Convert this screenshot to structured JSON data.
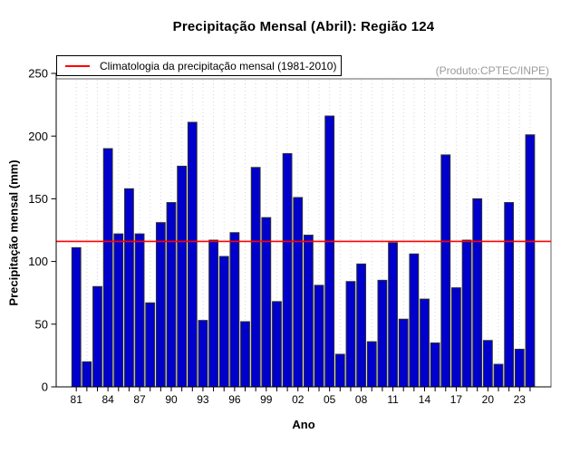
{
  "chart_data": {
    "type": "bar",
    "title": "Precipitação Mensal (Abril): Região 124",
    "watermark": "(Produto:CPTEC/INPE)",
    "xlabel": "Ano",
    "ylabel": "Precipitação mensal (mm)",
    "ylim": [
      0,
      250
    ],
    "y_ticks": [
      0,
      50,
      100,
      150,
      200,
      250
    ],
    "x_tick_labels": [
      "81",
      "84",
      "87",
      "90",
      "93",
      "96",
      "99",
      "02",
      "05",
      "08",
      "11",
      "14",
      "17",
      "20",
      "23"
    ],
    "x_tick_label_step": 3,
    "grid": "vertical-dotted",
    "legend_position": "top-left",
    "categories": [
      1981,
      1982,
      1983,
      1984,
      1985,
      1986,
      1987,
      1988,
      1989,
      1990,
      1991,
      1992,
      1993,
      1994,
      1995,
      1996,
      1997,
      1998,
      1999,
      2000,
      2001,
      2002,
      2003,
      2004,
      2005,
      2006,
      2007,
      2008,
      2009,
      2010,
      2011,
      2012,
      2013,
      2014,
      2015,
      2016,
      2017,
      2018,
      2019,
      2020,
      2021,
      2022,
      2023,
      2024
    ],
    "values": [
      111,
      20,
      80,
      190,
      122,
      158,
      122,
      67,
      131,
      147,
      176,
      211,
      53,
      117,
      104,
      123,
      52,
      175,
      135,
      68,
      186,
      151,
      121,
      81,
      216,
      26,
      84,
      98,
      36,
      85,
      115,
      54,
      106,
      70,
      35,
      185,
      79,
      117,
      150,
      37,
      18,
      147,
      30,
      201
    ],
    "climatology_line": {
      "label": "Climatologia da precipitação mensal (1981-2010)",
      "value": 116,
      "color": "#ff0000"
    },
    "colors": {
      "bar_fill": "#0000cd",
      "bar_border": "#2f2f2f",
      "grid": "#d6d6d6",
      "box": "#5f5f5f",
      "axis": "#000000",
      "watermark": "#9b9b9b"
    }
  }
}
